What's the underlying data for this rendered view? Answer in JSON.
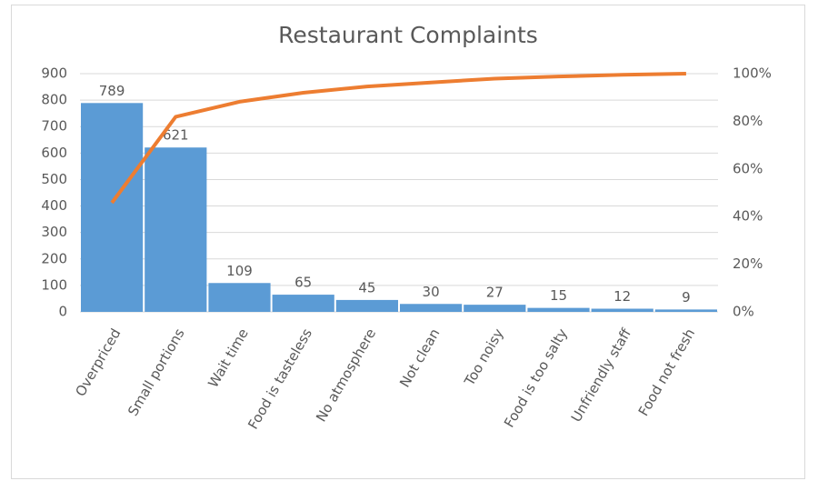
{
  "chart_data": {
    "type": "combo",
    "title": "Restaurant Complaints",
    "categories": [
      "Overpriced",
      "Small portions",
      "Wait time",
      "Food is tasteless",
      "No atmosphere",
      "Not clean",
      "Too noisy",
      "Food is too salty",
      "Unfriendly staff",
      "Food not fresh"
    ],
    "series": [
      {
        "type": "bar",
        "color": "#5b9bd5",
        "values": [
          789,
          621,
          109,
          65,
          45,
          30,
          27,
          15,
          12,
          9
        ]
      },
      {
        "type": "line",
        "axis": "y2",
        "color": "#ed7d31",
        "values": [
          45.8,
          81.9,
          88.2,
          92.0,
          94.6,
          96.3,
          97.9,
          98.8,
          99.5,
          100
        ]
      }
    ],
    "ylim": [
      0,
      900
    ],
    "yticks": [
      0,
      100,
      200,
      300,
      400,
      500,
      600,
      700,
      800,
      900
    ],
    "y2lim": [
      0,
      100
    ],
    "y2ticks": [
      {
        "value": 0,
        "label": "0%"
      },
      {
        "value": 20,
        "label": "20%"
      },
      {
        "value": 40,
        "label": "40%"
      },
      {
        "value": 60,
        "label": "60%"
      },
      {
        "value": 80,
        "label": "80%"
      },
      {
        "value": 100,
        "label": "100%"
      }
    ],
    "grid": true
  }
}
